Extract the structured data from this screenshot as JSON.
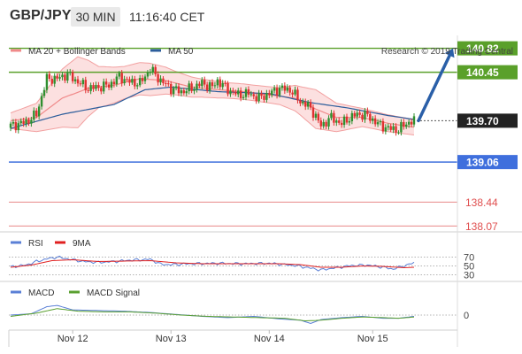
{
  "header": {
    "symbol": "GBP/JPY",
    "timeframe": "30 MIN",
    "time": "11:16:40 CET"
  },
  "legend_main": [
    {
      "label": "MA 20 + Bollinger Bands",
      "color": "#f08a8a"
    },
    {
      "label": "MA 50",
      "color": "#2c5d9b"
    }
  ],
  "copyright": "Research © 2019 Trading Central",
  "legend_rsi": [
    {
      "label": "RSI",
      "color": "#5a7fd6"
    },
    {
      "label": "9MA",
      "color": "#e02020"
    }
  ],
  "legend_macd": [
    {
      "label": "MACD",
      "color": "#5a7fd6"
    },
    {
      "label": "MACD Signal",
      "color": "#5aa030"
    }
  ],
  "colors": {
    "up": "#2f8f2f",
    "down": "#e03030",
    "resistance": "#5aa02a",
    "support": "#3f6fdd",
    "target": "#e88888",
    "last": "#222222",
    "arrow": "#2a5fa8"
  },
  "chart_data": [
    {
      "type": "candlestick",
      "title": "",
      "ylim": [
        137.98,
        141.02
      ],
      "x_tick_labels": [
        "Nov 12",
        "Nov 13",
        "Nov 14",
        "Nov 15"
      ],
      "last_price": "139.70",
      "levels": [
        {
          "value": "140.82",
          "kind": "resistance",
          "filled": true
        },
        {
          "value": "140.45",
          "kind": "resistance",
          "filled": true
        },
        {
          "value": "139.06",
          "kind": "support",
          "filled": true
        },
        {
          "value": "138.44",
          "kind": "target",
          "filled": false
        },
        {
          "value": "138.07",
          "kind": "target",
          "filled": false
        }
      ],
      "projection": {
        "from": 139.7,
        "to": 140.82
      },
      "close_anchors": [
        [
          0,
          139.62
        ],
        [
          6,
          139.68
        ],
        [
          10,
          139.8
        ],
        [
          14,
          140.35
        ],
        [
          18,
          140.35
        ],
        [
          22,
          140.42
        ],
        [
          26,
          140.3
        ],
        [
          30,
          140.2
        ],
        [
          34,
          140.22
        ],
        [
          38,
          140.25
        ],
        [
          42,
          140.38
        ],
        [
          46,
          140.3
        ],
        [
          50,
          140.28
        ],
        [
          54,
          140.5
        ],
        [
          58,
          140.32
        ],
        [
          62,
          140.2
        ],
        [
          66,
          140.15
        ],
        [
          70,
          140.2
        ],
        [
          74,
          140.28
        ],
        [
          78,
          140.22
        ],
        [
          80,
          140.32
        ],
        [
          84,
          140.18
        ],
        [
          88,
          140.1
        ],
        [
          92,
          140.12
        ],
        [
          96,
          140.05
        ],
        [
          100,
          140.12
        ],
        [
          104,
          140.2
        ],
        [
          108,
          140.18
        ],
        [
          112,
          140.0
        ],
        [
          116,
          139.9
        ],
        [
          120,
          139.62
        ],
        [
          124,
          139.75
        ],
        [
          128,
          139.65
        ],
        [
          130,
          139.72
        ],
        [
          134,
          139.8
        ],
        [
          138,
          139.78
        ],
        [
          142,
          139.65
        ],
        [
          146,
          139.58
        ],
        [
          150,
          139.56
        ],
        [
          153,
          139.66
        ],
        [
          156,
          139.7
        ]
      ],
      "ma20_anchors": [
        [
          0,
          139.7
        ],
        [
          10,
          139.75
        ],
        [
          20,
          140.05
        ],
        [
          30,
          140.2
        ],
        [
          40,
          140.25
        ],
        [
          50,
          140.35
        ],
        [
          60,
          140.32
        ],
        [
          70,
          140.22
        ],
        [
          80,
          140.18
        ],
        [
          90,
          140.15
        ],
        [
          100,
          140.1
        ],
        [
          110,
          140.05
        ],
        [
          118,
          139.88
        ],
        [
          126,
          139.75
        ],
        [
          136,
          139.75
        ],
        [
          146,
          139.66
        ],
        [
          156,
          139.6
        ]
      ],
      "bb_width_anchors": [
        [
          0,
          0.12
        ],
        [
          10,
          0.22
        ],
        [
          20,
          0.45
        ],
        [
          26,
          0.55
        ],
        [
          34,
          0.32
        ],
        [
          44,
          0.25
        ],
        [
          54,
          0.25
        ],
        [
          64,
          0.18
        ],
        [
          74,
          0.14
        ],
        [
          84,
          0.12
        ],
        [
          94,
          0.12
        ],
        [
          104,
          0.13
        ],
        [
          112,
          0.22
        ],
        [
          118,
          0.3
        ],
        [
          126,
          0.22
        ],
        [
          136,
          0.14
        ],
        [
          146,
          0.13
        ],
        [
          156,
          0.12
        ]
      ],
      "ma50_anchors": [
        [
          0,
          139.58
        ],
        [
          20,
          139.8
        ],
        [
          40,
          139.95
        ],
        [
          52,
          140.18
        ],
        [
          62,
          140.22
        ],
        [
          80,
          140.15
        ],
        [
          100,
          140.12
        ],
        [
          116,
          139.98
        ],
        [
          130,
          139.9
        ],
        [
          146,
          139.78
        ],
        [
          156,
          139.72
        ]
      ]
    },
    {
      "type": "line",
      "title": "RSI",
      "ylim": [
        15,
        85
      ],
      "levels": [
        "70",
        "50",
        "30"
      ],
      "series": [
        {
          "name": "RSI",
          "anchors": [
            [
              0,
              48
            ],
            [
              6,
              52
            ],
            [
              10,
              60
            ],
            [
              14,
              66
            ],
            [
              18,
              70
            ],
            [
              22,
              66
            ],
            [
              28,
              60
            ],
            [
              34,
              58
            ],
            [
              40,
              60
            ],
            [
              46,
              63
            ],
            [
              50,
              64
            ],
            [
              54,
              65
            ],
            [
              58,
              54
            ],
            [
              62,
              53
            ],
            [
              70,
              55
            ],
            [
              80,
              56
            ],
            [
              90,
              55
            ],
            [
              100,
              56
            ],
            [
              110,
              51
            ],
            [
              114,
              47
            ],
            [
              120,
              41
            ],
            [
              126,
              46
            ],
            [
              132,
              51
            ],
            [
              138,
              52
            ],
            [
              144,
              47
            ],
            [
              148,
              43
            ],
            [
              152,
              50
            ],
            [
              156,
              57
            ]
          ]
        },
        {
          "name": "9MA",
          "anchors": [
            [
              0,
              47
            ],
            [
              8,
              52
            ],
            [
              16,
              62
            ],
            [
              24,
              64
            ],
            [
              34,
              60
            ],
            [
              44,
              61
            ],
            [
              54,
              62
            ],
            [
              64,
              57
            ],
            [
              74,
              55
            ],
            [
              84,
              55
            ],
            [
              94,
              55
            ],
            [
              104,
              55
            ],
            [
              112,
              53
            ],
            [
              120,
              47
            ],
            [
              128,
              47
            ],
            [
              136,
              50
            ],
            [
              144,
              49
            ],
            [
              152,
              46
            ],
            [
              156,
              47
            ]
          ]
        }
      ]
    },
    {
      "type": "line",
      "title": "MACD",
      "ylim": [
        -0.22,
        0.22
      ],
      "levels": [
        "0"
      ],
      "series": [
        {
          "name": "MACD",
          "anchors": [
            [
              0,
              0.0
            ],
            [
              8,
              0.02
            ],
            [
              14,
              0.13
            ],
            [
              18,
              0.15
            ],
            [
              24,
              0.08
            ],
            [
              34,
              0.07
            ],
            [
              44,
              0.06
            ],
            [
              54,
              0.04
            ],
            [
              64,
              0.01
            ],
            [
              74,
              -0.02
            ],
            [
              84,
              -0.04
            ],
            [
              94,
              -0.02
            ],
            [
              104,
              -0.06
            ],
            [
              112,
              -0.08
            ],
            [
              116,
              -0.13
            ],
            [
              120,
              -0.07
            ],
            [
              128,
              -0.04
            ],
            [
              136,
              -0.02
            ],
            [
              144,
              -0.05
            ],
            [
              150,
              -0.05
            ],
            [
              156,
              -0.02
            ]
          ]
        },
        {
          "name": "MACD Signal",
          "anchors": [
            [
              0,
              -0.02
            ],
            [
              10,
              0.03
            ],
            [
              18,
              0.1
            ],
            [
              26,
              0.06
            ],
            [
              36,
              0.05
            ],
            [
              46,
              0.05
            ],
            [
              56,
              0.03
            ],
            [
              66,
              0.0
            ],
            [
              76,
              -0.02
            ],
            [
              86,
              -0.03
            ],
            [
              96,
              -0.04
            ],
            [
              106,
              -0.05
            ],
            [
              114,
              -0.09
            ],
            [
              120,
              -0.08
            ],
            [
              128,
              -0.05
            ],
            [
              136,
              -0.03
            ],
            [
              144,
              -0.04
            ],
            [
              150,
              -0.05
            ],
            [
              156,
              -0.03
            ]
          ]
        }
      ]
    }
  ]
}
